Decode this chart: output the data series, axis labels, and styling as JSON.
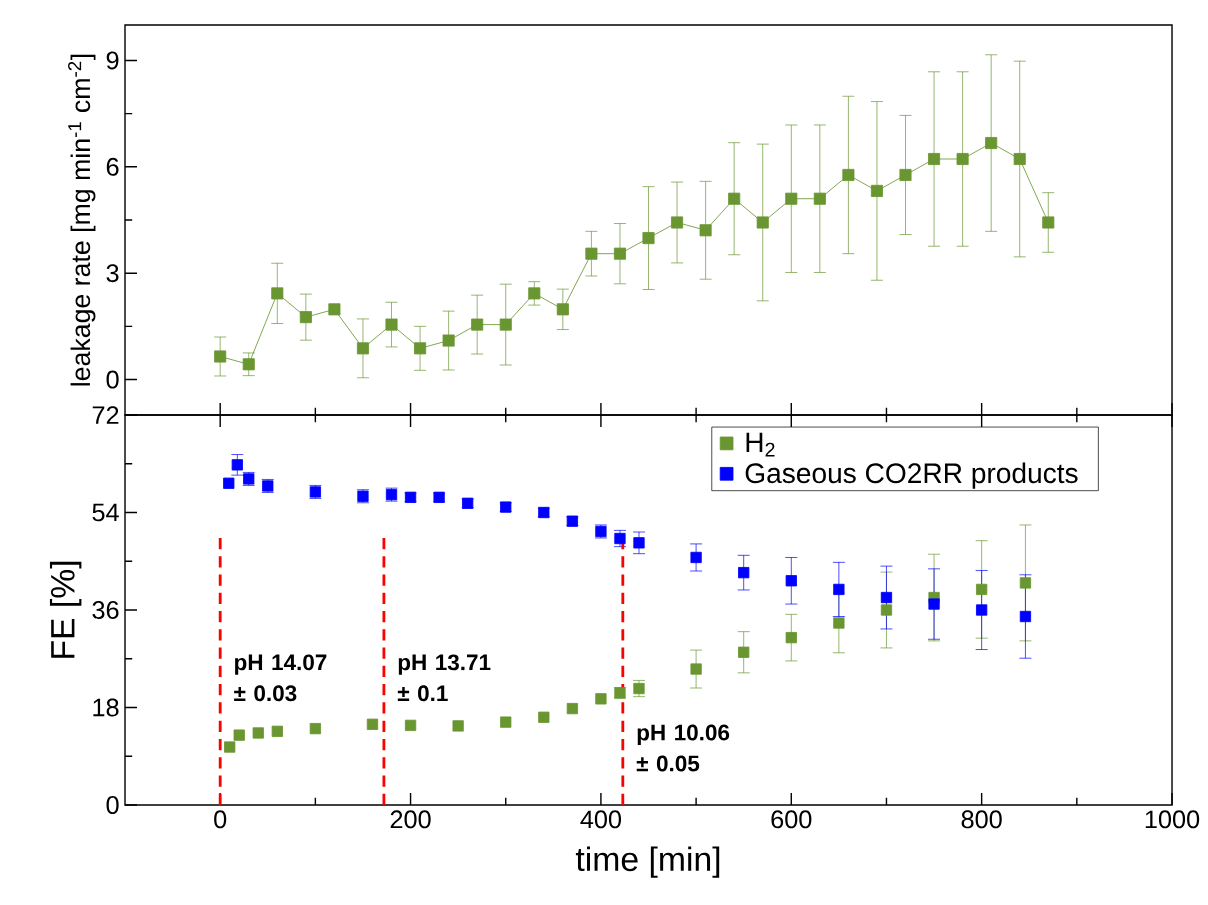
{
  "chart_data": [
    {
      "type": "line",
      "ylabel": "leakage rate [mg min$^{-1}$ cm$^{-2}$]",
      "xlim": [
        -100,
        1000
      ],
      "xticks": [
        0,
        200,
        400,
        600,
        800,
        1000
      ],
      "ylim": [
        -1,
        10
      ],
      "yticks": [
        0,
        3,
        6,
        9
      ],
      "tick_labels": "y",
      "marker": "square",
      "line_style": "solid",
      "series": [
        {
          "color": "#6a9632",
          "x": [
            0,
            30,
            60,
            90,
            120,
            150,
            180,
            210,
            240,
            270,
            300,
            330,
            360,
            390,
            420,
            450,
            480,
            510,
            540,
            570,
            600,
            630,
            660,
            690,
            720,
            750,
            780,
            810,
            840,
            870
          ],
          "values": [
            0.65,
            0.43,
            2.43,
            1.76,
            1.98,
            0.88,
            1.55,
            0.88,
            1.1,
            1.55,
            1.55,
            2.43,
            1.98,
            3.55,
            3.55,
            3.99,
            4.43,
            4.21,
            5.1,
            4.43,
            5.1,
            5.1,
            5.77,
            5.32,
            5.77,
            6.22,
            6.22,
            6.67,
            6.22,
            4.43
          ],
          "errors": [
            0.55,
            0.32,
            0.85,
            0.65,
            null,
            0.83,
            0.63,
            0.62,
            0.83,
            0.83,
            1.14,
            0.33,
            0.57,
            0.63,
            0.85,
            1.45,
            1.14,
            1.38,
            1.58,
            2.21,
            2.08,
            2.08,
            2.22,
            2.52,
            1.68,
            2.46,
            2.46,
            2.49,
            2.76,
            0.84
          ]
        }
      ]
    },
    {
      "type": "scatter",
      "xlabel": "time [min]",
      "ylabel": "FE [%]",
      "xlim": [
        -100,
        1000
      ],
      "xticks": [
        0,
        200,
        400,
        600,
        800,
        1000
      ],
      "ylim": [
        0,
        72
      ],
      "yticks": [
        0,
        18,
        36,
        54,
        72
      ],
      "marker": "square",
      "legend": "top right",
      "ref_lines": [
        {
          "axis": "x",
          "value": 0,
          "label": "pH 14.07 ± 0.03",
          "color": "#ff0000",
          "line_style": "dashed"
        },
        {
          "axis": "x",
          "value": 172,
          "label": "pH 13.71 ± 0.1",
          "color": "#ff0000",
          "line_style": "dashed"
        },
        {
          "axis": "x",
          "value": 423,
          "label": "pH 10.06 ± 0.05",
          "color": "#ff0000",
          "line_style": "dashed"
        }
      ],
      "series": [
        {
          "name": "H$_{2}$",
          "color": "#6a9632",
          "x": [
            10,
            20,
            40,
            60,
            100,
            160,
            200,
            250,
            300,
            340,
            370,
            400,
            420,
            440,
            500,
            550,
            600,
            650,
            700,
            750,
            800,
            846
          ],
          "values": [
            10.7,
            12.9,
            13.3,
            13.6,
            14.1,
            14.9,
            14.7,
            14.6,
            15.3,
            16.2,
            17.8,
            19.6,
            20.7,
            21.5,
            25.1,
            28.2,
            30.9,
            33.6,
            36.0,
            38.3,
            39.8,
            41.0
          ],
          "errors": [
            null,
            null,
            null,
            null,
            null,
            null,
            null,
            null,
            null,
            null,
            null,
            null,
            1.0,
            1.5,
            3.5,
            3.8,
            4.3,
            5.5,
            7.0,
            8.0,
            9.0,
            10.7
          ]
        },
        {
          "name": "Gaseous CO2RR products",
          "color": "#0000ff",
          "x": [
            9,
            18,
            30,
            50,
            100,
            150,
            180,
            200,
            230,
            260,
            300,
            340,
            370,
            400,
            420,
            440,
            500,
            550,
            600,
            650,
            700,
            750,
            800,
            846
          ],
          "values": [
            59.4,
            62.8,
            60.2,
            58.9,
            57.8,
            57.0,
            57.3,
            56.8,
            56.8,
            55.7,
            55.0,
            54.0,
            52.4,
            50.5,
            49.2,
            48.4,
            45.7,
            42.9,
            41.4,
            39.8,
            38.3,
            37.1,
            36.0,
            34.8
          ],
          "errors": [
            null,
            1.9,
            1.2,
            1.2,
            1.2,
            1.2,
            1.2,
            0.8,
            0.8,
            0.8,
            0.8,
            0.8,
            0.8,
            1.2,
            1.5,
            2.0,
            2.5,
            3.2,
            4.3,
            5.0,
            5.8,
            6.5,
            7.3,
            7.7
          ]
        }
      ]
    }
  ]
}
